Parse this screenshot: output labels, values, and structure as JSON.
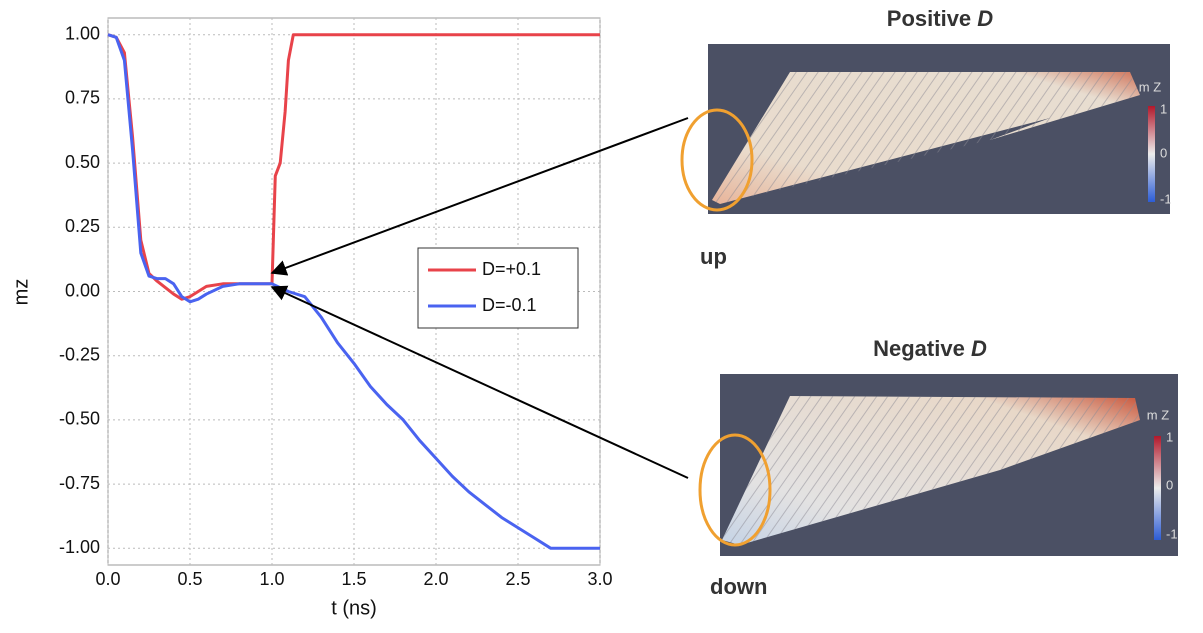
{
  "chart_data": {
    "type": "line",
    "xlabel": "t (ns)",
    "ylabel": "mz",
    "xlim": [
      0,
      3
    ],
    "ylim": [
      -1.065,
      1.065
    ],
    "xticks": [
      {
        "value": 0,
        "label": "0.0"
      },
      {
        "value": 0.5,
        "label": "0.5"
      },
      {
        "value": 1,
        "label": "1.0"
      },
      {
        "value": 1.5,
        "label": "1.5"
      },
      {
        "value": 2,
        "label": "2.0"
      },
      {
        "value": 2.5,
        "label": "2.5"
      },
      {
        "value": 3,
        "label": "3.0"
      }
    ],
    "yticks": [
      {
        "value": 1,
        "label": "1.00"
      },
      {
        "value": 0.75,
        "label": "0.75"
      },
      {
        "value": 0.5,
        "label": "0.50"
      },
      {
        "value": 0.25,
        "label": "0.25"
      },
      {
        "value": 0,
        "label": "0.00"
      },
      {
        "value": -0.25,
        "label": "-0.25"
      },
      {
        "value": -0.5,
        "label": "-0.50"
      },
      {
        "value": -0.75,
        "label": "-0.75"
      },
      {
        "value": -1,
        "label": "-1.00"
      }
    ],
    "grid": true,
    "legend": "center-right",
    "series": [
      {
        "name": "D=+0.1",
        "color": "#e8434a",
        "x": [
          0,
          0.05,
          0.1,
          0.15,
          0.2,
          0.25,
          0.3,
          0.4,
          0.45,
          0.5,
          0.55,
          0.6,
          0.7,
          0.9,
          1.0,
          1.02,
          1.05,
          1.08,
          1.1,
          1.13,
          3.0
        ],
        "values": [
          1,
          0.99,
          0.93,
          0.6,
          0.2,
          0.07,
          0.04,
          -0.01,
          -0.03,
          -0.02,
          0.0,
          0.02,
          0.03,
          0.03,
          0.03,
          0.45,
          0.5,
          0.7,
          0.9,
          1.0,
          1.0
        ]
      },
      {
        "name": "D=-0.1",
        "color": "#4a63f0",
        "x": [
          0,
          0.05,
          0.1,
          0.15,
          0.2,
          0.25,
          0.3,
          0.35,
          0.4,
          0.45,
          0.5,
          0.55,
          0.6,
          0.7,
          0.8,
          1.0,
          1.1,
          1.2,
          1.3,
          1.4,
          1.5,
          1.6,
          1.7,
          1.8,
          1.9,
          2.0,
          2.1,
          2.2,
          2.3,
          2.4,
          2.5,
          2.6,
          2.7,
          3.0
        ],
        "values": [
          1,
          0.99,
          0.9,
          0.55,
          0.15,
          0.06,
          0.05,
          0.05,
          0.03,
          -0.02,
          -0.04,
          -0.03,
          -0.01,
          0.02,
          0.03,
          0.03,
          0.0,
          -0.02,
          -0.1,
          -0.2,
          -0.28,
          -0.37,
          -0.44,
          -0.5,
          -0.58,
          -0.65,
          -0.72,
          -0.78,
          -0.83,
          -0.88,
          -0.92,
          -0.96,
          -1.0,
          -1.0
        ]
      }
    ]
  },
  "panels": [
    {
      "title": "Positive",
      "title_symbol": "D",
      "annotation": "up",
      "colorbar": {
        "label": "m Z",
        "ticks": [
          1,
          0,
          -1
        ]
      }
    },
    {
      "title": "Negative",
      "title_symbol": "D",
      "annotation": "down",
      "colorbar": {
        "label": "m Z",
        "ticks": [
          1,
          0,
          -1
        ]
      }
    }
  ]
}
